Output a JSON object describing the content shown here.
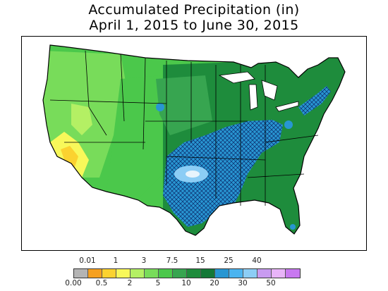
{
  "title": {
    "line1": "Accumulated Precipitation (in)",
    "line2": "April 1, 2015 to June 30, 2015"
  },
  "legend": {
    "top_labels": [
      "0.01",
      "1",
      "3",
      "7.5",
      "15",
      "25",
      "40"
    ],
    "bottom_labels": [
      "0.00",
      "0.5",
      "2",
      "5",
      "10",
      "20",
      "30",
      "50"
    ],
    "colors": [
      "#b4b4b4",
      "#f5a020",
      "#fbd230",
      "#f8f85a",
      "#b4f064",
      "#78dc5a",
      "#4bc84b",
      "#37a550",
      "#1e8c3c",
      "#147837",
      "#2896d2",
      "#4bb4f0",
      "#8ccdf5",
      "#c89bf0",
      "#e8b4f8",
      "#c878f0"
    ]
  },
  "map": {
    "region": "contiguous-united-states",
    "wettest_area": "southern-plains-texas-oklahoma",
    "driest_area": "southwest-california-arizona"
  }
}
